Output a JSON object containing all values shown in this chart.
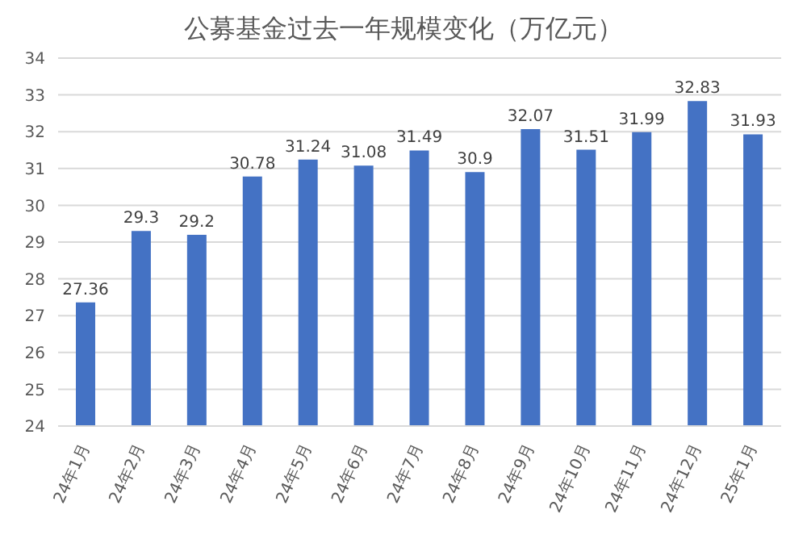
{
  "chart_data": {
    "type": "bar",
    "title": "公募基金过去一年规模变化（万亿元）",
    "categories": [
      "24年1月",
      "24年2月",
      "24年3月",
      "24年4月",
      "24年5月",
      "24年6月",
      "24年7月",
      "24年8月",
      "24年9月",
      "24年10月",
      "24年11月",
      "24年12月",
      "25年1月"
    ],
    "values": [
      27.36,
      29.3,
      29.2,
      30.78,
      31.24,
      31.08,
      31.49,
      30.9,
      32.07,
      31.51,
      31.99,
      32.83,
      31.93
    ],
    "color": "#4472c4",
    "ylim": [
      24,
      34
    ],
    "yticks": [
      24,
      25,
      26,
      27,
      28,
      29,
      30,
      31,
      32,
      33,
      34
    ],
    "grid": "y",
    "data_labels": true
  }
}
